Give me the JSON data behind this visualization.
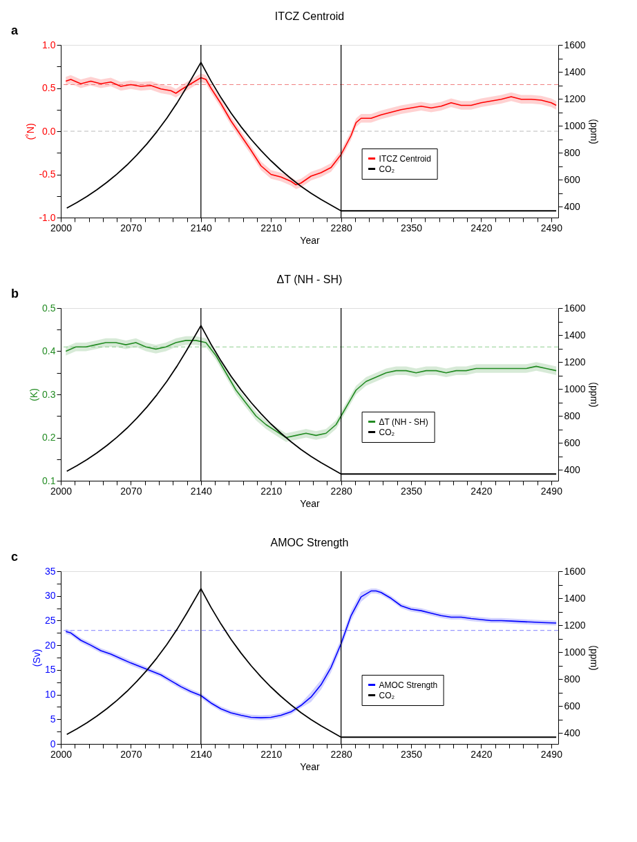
{
  "chart_data": [
    {
      "type": "line",
      "title": "ITCZ Centroid",
      "xlabel": "Year",
      "ylabel": "(˚N)",
      "y2label": "(ppm)",
      "annotations": [
        "a"
      ],
      "legend": "bottom right",
      "grid": false,
      "xlim": [
        2000,
        2497
      ],
      "ylim": [
        -1.0,
        1.0
      ],
      "y2lim": [
        320,
        1600
      ],
      "xticks": [
        2000,
        {
          "value": 2014,
          "label": null
        },
        {
          "value": 2028,
          "label": null
        },
        {
          "value": 2042,
          "label": null
        },
        {
          "value": 2056,
          "label": null
        },
        2070,
        {
          "value": 2084,
          "label": null
        },
        {
          "value": 2098,
          "label": null
        },
        {
          "value": 2112,
          "label": null
        },
        {
          "value": 2126,
          "label": null
        },
        2140,
        {
          "value": 2154,
          "label": null
        },
        {
          "value": 2168,
          "label": null
        },
        {
          "value": 2182,
          "label": null
        },
        {
          "value": 2196,
          "label": null
        },
        2210,
        {
          "value": 2224,
          "label": null
        },
        {
          "value": 2238,
          "label": null
        },
        {
          "value": 2252,
          "label": null
        },
        {
          "value": 2266,
          "label": null
        },
        2280,
        {
          "value": 2294,
          "label": null
        },
        {
          "value": 2308,
          "label": null
        },
        {
          "value": 2322,
          "label": null
        },
        {
          "value": 2336,
          "label": null
        },
        2350,
        {
          "value": 2364,
          "label": null
        },
        {
          "value": 2378,
          "label": null
        },
        {
          "value": 2392,
          "label": null
        },
        {
          "value": 2406,
          "label": null
        },
        2420,
        {
          "value": 2434,
          "label": null
        },
        {
          "value": 2448,
          "label": null
        },
        {
          "value": 2462,
          "label": null
        },
        {
          "value": 2476,
          "label": null
        },
        2490
      ],
      "yticks": [
        {
          "value": -1.0,
          "label": "-1.0"
        },
        {
          "value": -0.75,
          "label": null
        },
        {
          "value": -0.5,
          "label": "-0.5"
        },
        {
          "value": -0.25,
          "label": null
        },
        {
          "value": 0.0,
          "label": "0.0"
        },
        {
          "value": 0.25,
          "label": null
        },
        {
          "value": 0.5,
          "label": "0.5"
        },
        {
          "value": 0.75,
          "label": null
        },
        {
          "value": 1.0,
          "label": "1.0"
        }
      ],
      "y2ticks": [
        400,
        {
          "value": 500,
          "label": null
        },
        600,
        {
          "value": 700,
          "label": null
        },
        800,
        {
          "value": 900,
          "label": null
        },
        1000,
        {
          "value": 1100,
          "label": null
        },
        1200,
        {
          "value": 1300,
          "label": null
        },
        1400,
        {
          "value": 1500,
          "label": null
        },
        1600
      ],
      "ref_lines": [
        {
          "axis": "y",
          "value": 0.54,
          "color": "#f08080",
          "line_style": "dashed"
        },
        {
          "axis": "y",
          "value": 0.0,
          "color": "#bbbbbb",
          "line_style": "dashed"
        },
        {
          "axis": "x",
          "value": 2140,
          "color": "#000000",
          "line_style": "solid"
        },
        {
          "axis": "x",
          "value": 2280,
          "color": "#000000",
          "line_style": "solid"
        }
      ],
      "series": [
        {
          "name": "ITCZ Centroid",
          "color": "#ff0000",
          "type": "line",
          "axis": "y",
          "x": [
            2005,
            2010,
            2020,
            2030,
            2040,
            2050,
            2060,
            2070,
            2080,
            2090,
            2100,
            2110,
            2115,
            2120,
            2130,
            2140,
            2145,
            2150,
            2160,
            2170,
            2180,
            2190,
            2200,
            2210,
            2220,
            2230,
            2235,
            2240,
            2250,
            2260,
            2270,
            2280,
            2290,
            2295,
            2300,
            2310,
            2320,
            2330,
            2340,
            2350,
            2360,
            2370,
            2380,
            2390,
            2400,
            2410,
            2420,
            2430,
            2440,
            2450,
            2460,
            2470,
            2480,
            2490,
            2495
          ],
          "values": [
            0.58,
            0.6,
            0.55,
            0.58,
            0.55,
            0.57,
            0.52,
            0.54,
            0.52,
            0.53,
            0.49,
            0.47,
            0.44,
            0.48,
            0.55,
            0.62,
            0.6,
            0.5,
            0.32,
            0.12,
            -0.05,
            -0.22,
            -0.4,
            -0.5,
            -0.53,
            -0.58,
            -0.62,
            -0.6,
            -0.52,
            -0.48,
            -0.42,
            -0.27,
            -0.05,
            0.1,
            0.15,
            0.15,
            0.19,
            0.22,
            0.25,
            0.27,
            0.29,
            0.27,
            0.29,
            0.33,
            0.3,
            0.3,
            0.33,
            0.35,
            0.37,
            0.4,
            0.37,
            0.37,
            0.36,
            0.33,
            0.3
          ],
          "lower": [
            0.53,
            0.55,
            0.5,
            0.53,
            0.5,
            0.52,
            0.47,
            0.49,
            0.47,
            0.48,
            0.44,
            0.42,
            0.39,
            0.43,
            0.5,
            0.57,
            0.55,
            0.45,
            0.27,
            0.07,
            -0.1,
            -0.27,
            -0.45,
            -0.55,
            -0.58,
            -0.63,
            -0.67,
            -0.65,
            -0.57,
            -0.53,
            -0.47,
            -0.32,
            -0.1,
            0.05,
            0.1,
            0.1,
            0.14,
            0.17,
            0.2,
            0.22,
            0.24,
            0.22,
            0.24,
            0.28,
            0.25,
            0.25,
            0.28,
            0.3,
            0.32,
            0.35,
            0.32,
            0.32,
            0.31,
            0.28,
            0.25
          ],
          "upper": [
            0.63,
            0.65,
            0.6,
            0.63,
            0.6,
            0.62,
            0.57,
            0.59,
            0.57,
            0.58,
            0.54,
            0.52,
            0.49,
            0.53,
            0.6,
            0.67,
            0.65,
            0.55,
            0.37,
            0.17,
            0.0,
            -0.17,
            -0.35,
            -0.45,
            -0.48,
            -0.53,
            -0.57,
            -0.55,
            -0.47,
            -0.43,
            -0.37,
            -0.22,
            0.0,
            0.15,
            0.2,
            0.2,
            0.24,
            0.27,
            0.3,
            0.32,
            0.34,
            0.32,
            0.34,
            0.38,
            0.35,
            0.35,
            0.38,
            0.4,
            0.42,
            0.45,
            0.42,
            0.42,
            0.41,
            0.38,
            0.35
          ]
        },
        {
          "name": "CO₂",
          "color": "#000000",
          "type": "line",
          "axis": "y2",
          "x": [
            2006,
            2016,
            2026,
            2036,
            2046,
            2056,
            2066,
            2076,
            2086,
            2096,
            2106,
            2116,
            2126,
            2140,
            2150,
            2160,
            2170,
            2180,
            2190,
            2200,
            2210,
            2220,
            2230,
            2240,
            2250,
            2260,
            2270,
            2280,
            2495
          ],
          "values": [
            390,
            431,
            476,
            526,
            581,
            642,
            709,
            784,
            866,
            957,
            1057,
            1168,
            1290,
            1470,
            1333,
            1209,
            1096,
            994,
            901,
            817,
            741,
            672,
            609,
            552,
            501,
            454,
            412,
            370,
            370
          ]
        }
      ]
    },
    {
      "type": "line",
      "title": "ΔT (NH - SH)",
      "xlabel": "Year",
      "ylabel": "(K)",
      "y2label": "(ppm)",
      "annotations": [
        "b"
      ],
      "legend": "bottom right",
      "grid": false,
      "xlim": [
        2000,
        2497
      ],
      "ylim": [
        0.1,
        0.5
      ],
      "y2lim": [
        320,
        1600
      ],
      "xticks": [
        2000,
        {
          "value": 2014,
          "label": null
        },
        {
          "value": 2028,
          "label": null
        },
        {
          "value": 2042,
          "label": null
        },
        {
          "value": 2056,
          "label": null
        },
        2070,
        {
          "value": 2084,
          "label": null
        },
        {
          "value": 2098,
          "label": null
        },
        {
          "value": 2112,
          "label": null
        },
        {
          "value": 2126,
          "label": null
        },
        2140,
        {
          "value": 2154,
          "label": null
        },
        {
          "value": 2168,
          "label": null
        },
        {
          "value": 2182,
          "label": null
        },
        {
          "value": 2196,
          "label": null
        },
        2210,
        {
          "value": 2224,
          "label": null
        },
        {
          "value": 2238,
          "label": null
        },
        {
          "value": 2252,
          "label": null
        },
        {
          "value": 2266,
          "label": null
        },
        2280,
        {
          "value": 2294,
          "label": null
        },
        {
          "value": 2308,
          "label": null
        },
        {
          "value": 2322,
          "label": null
        },
        {
          "value": 2336,
          "label": null
        },
        2350,
        {
          "value": 2364,
          "label": null
        },
        {
          "value": 2378,
          "label": null
        },
        {
          "value": 2392,
          "label": null
        },
        {
          "value": 2406,
          "label": null
        },
        2420,
        {
          "value": 2434,
          "label": null
        },
        {
          "value": 2448,
          "label": null
        },
        {
          "value": 2462,
          "label": null
        },
        {
          "value": 2476,
          "label": null
        },
        2490
      ],
      "yticks": [
        0.1,
        {
          "value": 0.15,
          "label": null
        },
        0.2,
        {
          "value": 0.25,
          "label": null
        },
        0.3,
        {
          "value": 0.35,
          "label": null
        },
        0.4,
        {
          "value": 0.45,
          "label": null
        },
        0.5
      ],
      "y2ticks": [
        400,
        {
          "value": 500,
          "label": null
        },
        600,
        {
          "value": 700,
          "label": null
        },
        800,
        {
          "value": 900,
          "label": null
        },
        1000,
        {
          "value": 1100,
          "label": null
        },
        1200,
        {
          "value": 1300,
          "label": null
        },
        1400,
        {
          "value": 1500,
          "label": null
        },
        1600
      ],
      "ref_lines": [
        {
          "axis": "y",
          "value": 0.41,
          "color": "#8fcf8f",
          "line_style": "dashed"
        },
        {
          "axis": "x",
          "value": 2140,
          "color": "#000000",
          "line_style": "solid"
        },
        {
          "axis": "x",
          "value": 2280,
          "color": "#000000",
          "line_style": "solid"
        }
      ],
      "series": [
        {
          "name": "ΔT (NH - SH)",
          "color": "#228b22",
          "type": "line",
          "axis": "y",
          "x": [
            2005,
            2015,
            2025,
            2035,
            2045,
            2055,
            2065,
            2075,
            2085,
            2095,
            2105,
            2115,
            2125,
            2135,
            2145,
            2155,
            2165,
            2175,
            2185,
            2195,
            2205,
            2215,
            2225,
            2235,
            2245,
            2255,
            2265,
            2275,
            2285,
            2295,
            2305,
            2315,
            2325,
            2335,
            2345,
            2355,
            2365,
            2375,
            2385,
            2395,
            2405,
            2415,
            2425,
            2435,
            2445,
            2455,
            2465,
            2475,
            2485,
            2495
          ],
          "values": [
            0.4,
            0.41,
            0.41,
            0.415,
            0.42,
            0.42,
            0.415,
            0.42,
            0.41,
            0.405,
            0.41,
            0.42,
            0.425,
            0.425,
            0.42,
            0.39,
            0.35,
            0.31,
            0.28,
            0.25,
            0.23,
            0.215,
            0.2,
            0.205,
            0.21,
            0.205,
            0.21,
            0.23,
            0.27,
            0.31,
            0.33,
            0.34,
            0.35,
            0.355,
            0.355,
            0.35,
            0.355,
            0.355,
            0.35,
            0.355,
            0.355,
            0.36,
            0.36,
            0.36,
            0.36,
            0.36,
            0.36,
            0.365,
            0.36,
            0.355
          ],
          "lower": [
            0.39,
            0.4,
            0.4,
            0.405,
            0.41,
            0.41,
            0.405,
            0.41,
            0.4,
            0.395,
            0.4,
            0.41,
            0.415,
            0.415,
            0.41,
            0.38,
            0.34,
            0.3,
            0.27,
            0.24,
            0.22,
            0.205,
            0.19,
            0.195,
            0.2,
            0.195,
            0.2,
            0.22,
            0.26,
            0.3,
            0.32,
            0.33,
            0.34,
            0.345,
            0.345,
            0.34,
            0.345,
            0.345,
            0.34,
            0.345,
            0.345,
            0.35,
            0.35,
            0.35,
            0.35,
            0.35,
            0.35,
            0.355,
            0.35,
            0.345
          ],
          "upper": [
            0.41,
            0.42,
            0.42,
            0.425,
            0.43,
            0.43,
            0.425,
            0.43,
            0.42,
            0.415,
            0.42,
            0.43,
            0.435,
            0.435,
            0.43,
            0.4,
            0.36,
            0.32,
            0.29,
            0.26,
            0.24,
            0.225,
            0.21,
            0.215,
            0.22,
            0.215,
            0.22,
            0.24,
            0.28,
            0.32,
            0.34,
            0.35,
            0.36,
            0.365,
            0.365,
            0.36,
            0.365,
            0.365,
            0.36,
            0.365,
            0.365,
            0.37,
            0.37,
            0.37,
            0.37,
            0.37,
            0.37,
            0.375,
            0.37,
            0.365
          ]
        },
        {
          "name": "CO₂",
          "color": "#000000",
          "type": "line",
          "axis": "y2",
          "x": [
            2006,
            2016,
            2026,
            2036,
            2046,
            2056,
            2066,
            2076,
            2086,
            2096,
            2106,
            2116,
            2126,
            2140,
            2150,
            2160,
            2170,
            2180,
            2190,
            2200,
            2210,
            2220,
            2230,
            2240,
            2250,
            2260,
            2270,
            2280,
            2495
          ],
          "values": [
            390,
            431,
            476,
            526,
            581,
            642,
            709,
            784,
            866,
            957,
            1057,
            1168,
            1290,
            1470,
            1333,
            1209,
            1096,
            994,
            901,
            817,
            741,
            672,
            609,
            552,
            501,
            454,
            412,
            370,
            370
          ]
        }
      ]
    },
    {
      "type": "line",
      "title": "AMOC Strength",
      "xlabel": "Year",
      "ylabel": "(Sv)",
      "y2label": "(ppm)",
      "annotations": [
        "c"
      ],
      "legend": "bottom right",
      "grid": false,
      "xlim": [
        2000,
        2497
      ],
      "ylim": [
        0,
        35
      ],
      "y2lim": [
        320,
        1600
      ],
      "xticks": [
        2000,
        {
          "value": 2014,
          "label": null
        },
        {
          "value": 2028,
          "label": null
        },
        {
          "value": 2042,
          "label": null
        },
        {
          "value": 2056,
          "label": null
        },
        2070,
        {
          "value": 2084,
          "label": null
        },
        {
          "value": 2098,
          "label": null
        },
        {
          "value": 2112,
          "label": null
        },
        {
          "value": 2126,
          "label": null
        },
        2140,
        {
          "value": 2154,
          "label": null
        },
        {
          "value": 2168,
          "label": null
        },
        {
          "value": 2182,
          "label": null
        },
        {
          "value": 2196,
          "label": null
        },
        2210,
        {
          "value": 2224,
          "label": null
        },
        {
          "value": 2238,
          "label": null
        },
        {
          "value": 2252,
          "label": null
        },
        {
          "value": 2266,
          "label": null
        },
        2280,
        {
          "value": 2294,
          "label": null
        },
        {
          "value": 2308,
          "label": null
        },
        {
          "value": 2322,
          "label": null
        },
        {
          "value": 2336,
          "label": null
        },
        2350,
        {
          "value": 2364,
          "label": null
        },
        {
          "value": 2378,
          "label": null
        },
        {
          "value": 2392,
          "label": null
        },
        {
          "value": 2406,
          "label": null
        },
        2420,
        {
          "value": 2434,
          "label": null
        },
        {
          "value": 2448,
          "label": null
        },
        {
          "value": 2462,
          "label": null
        },
        {
          "value": 2476,
          "label": null
        },
        2490
      ],
      "yticks": [
        0,
        {
          "value": 2.5,
          "label": null
        },
        5,
        {
          "value": 7.5,
          "label": null
        },
        10,
        {
          "value": 12.5,
          "label": null
        },
        15,
        {
          "value": 17.5,
          "label": null
        },
        20,
        {
          "value": 22.5,
          "label": null
        },
        25,
        {
          "value": 27.5,
          "label": null
        },
        30,
        {
          "value": 32.5,
          "label": null
        },
        35
      ],
      "y2ticks": [
        400,
        {
          "value": 500,
          "label": null
        },
        600,
        {
          "value": 700,
          "label": null
        },
        800,
        {
          "value": 900,
          "label": null
        },
        1000,
        {
          "value": 1100,
          "label": null
        },
        1200,
        {
          "value": 1300,
          "label": null
        },
        1400,
        {
          "value": 1500,
          "label": null
        },
        1600
      ],
      "ref_lines": [
        {
          "axis": "y",
          "value": 23,
          "color": "#8080ff",
          "line_style": "dashed"
        },
        {
          "axis": "x",
          "value": 2140,
          "color": "#000000",
          "line_style": "solid"
        },
        {
          "axis": "x",
          "value": 2280,
          "color": "#000000",
          "line_style": "solid"
        }
      ],
      "series": [
        {
          "name": "AMOC Strength",
          "color": "#0000ff",
          "type": "line",
          "axis": "y",
          "x": [
            2005,
            2010,
            2020,
            2030,
            2040,
            2050,
            2060,
            2070,
            2080,
            2090,
            2100,
            2110,
            2120,
            2130,
            2140,
            2150,
            2160,
            2170,
            2180,
            2190,
            2200,
            2210,
            2220,
            2230,
            2240,
            2250,
            2260,
            2270,
            2280,
            2290,
            2300,
            2310,
            2315,
            2320,
            2330,
            2340,
            2350,
            2360,
            2370,
            2380,
            2390,
            2400,
            2410,
            2420,
            2430,
            2440,
            2450,
            2460,
            2470,
            2480,
            2495
          ],
          "values": [
            22.8,
            22.5,
            21.0,
            20.0,
            18.9,
            18.2,
            17.3,
            16.4,
            15.6,
            14.8,
            14.0,
            12.8,
            11.6,
            10.6,
            9.8,
            8.3,
            7.1,
            6.3,
            5.8,
            5.4,
            5.3,
            5.4,
            5.8,
            6.5,
            7.8,
            9.5,
            12.0,
            15.5,
            20.3,
            26.0,
            29.8,
            31.0,
            31.0,
            30.7,
            29.5,
            28.0,
            27.3,
            27.0,
            26.5,
            26.0,
            25.7,
            25.7,
            25.4,
            25.2,
            25.0,
            25.0,
            24.9,
            24.8,
            24.7,
            24.6,
            24.5
          ],
          "lower": [
            22.3,
            22.0,
            20.5,
            19.5,
            18.4,
            17.7,
            16.8,
            15.9,
            15.1,
            14.3,
            13.5,
            12.3,
            11.1,
            10.1,
            9.3,
            7.8,
            6.6,
            5.8,
            5.3,
            4.9,
            4.8,
            4.9,
            5.3,
            6.0,
            7.3,
            8.5,
            11.0,
            14.5,
            19.3,
            25.0,
            28.8,
            30.5,
            30.5,
            30.2,
            29.0,
            27.5,
            26.8,
            26.5,
            26.0,
            25.5,
            25.2,
            25.2,
            24.9,
            24.7,
            24.5,
            24.5,
            24.4,
            24.3,
            24.2,
            24.1,
            24.0
          ],
          "upper": [
            23.3,
            23.0,
            21.5,
            20.5,
            19.4,
            18.7,
            17.8,
            16.9,
            16.1,
            15.3,
            14.5,
            13.3,
            12.1,
            11.1,
            10.3,
            8.8,
            7.6,
            6.8,
            6.3,
            5.9,
            5.8,
            5.9,
            6.3,
            7.0,
            8.3,
            10.5,
            13.0,
            16.5,
            21.3,
            27.0,
            30.8,
            31.5,
            31.5,
            31.2,
            30.0,
            28.5,
            27.8,
            27.5,
            27.0,
            26.5,
            26.2,
            26.2,
            25.9,
            25.7,
            25.5,
            25.5,
            25.4,
            25.3,
            25.2,
            25.1,
            25.0
          ]
        },
        {
          "name": "CO₂",
          "color": "#000000",
          "type": "line",
          "axis": "y2",
          "x": [
            2006,
            2016,
            2026,
            2036,
            2046,
            2056,
            2066,
            2076,
            2086,
            2096,
            2106,
            2116,
            2126,
            2140,
            2150,
            2160,
            2170,
            2180,
            2190,
            2200,
            2210,
            2220,
            2230,
            2240,
            2250,
            2260,
            2270,
            2280,
            2495
          ],
          "values": [
            390,
            431,
            476,
            526,
            581,
            642,
            709,
            784,
            866,
            957,
            1057,
            1168,
            1290,
            1470,
            1333,
            1209,
            1096,
            994,
            901,
            817,
            741,
            672,
            609,
            552,
            501,
            454,
            412,
            370,
            370
          ]
        }
      ]
    }
  ]
}
